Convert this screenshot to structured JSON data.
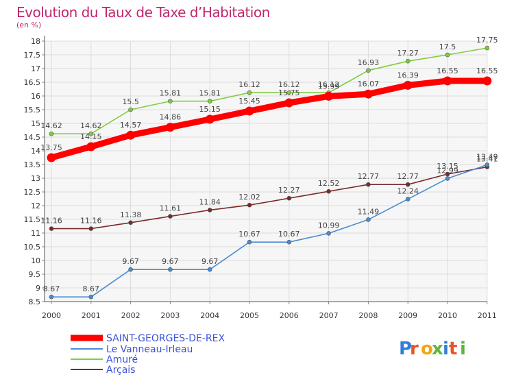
{
  "title": "Evolution du Taux de Taxe d’Habitation",
  "unit": "(en %)",
  "logo": "Proxiti",
  "chart_data": {
    "type": "line",
    "x": [
      "2000",
      "2001",
      "2002",
      "2003",
      "2004",
      "2005",
      "2006",
      "2007",
      "2008",
      "2009",
      "2010",
      "2011"
    ],
    "ylim": [
      8.5,
      18
    ],
    "yticks": [
      8.5,
      9,
      9.5,
      10,
      10.5,
      11,
      11.5,
      12,
      12.5,
      13,
      13.5,
      14,
      14.5,
      15,
      15.5,
      16,
      16.5,
      17,
      17.5,
      18
    ],
    "ytick_labels": [
      "8.5",
      "9",
      "9.5",
      "10",
      "10.5",
      "11",
      "11.5",
      "12",
      "12.5",
      "13",
      "13.5",
      "14",
      "14.5",
      "15",
      "15.5",
      "16",
      "16.5",
      "17",
      "17.5",
      "18"
    ],
    "grid": true,
    "legend_position": "bottom-left",
    "series": [
      {
        "name": "SAINT-GEORGES-DE-REX",
        "color": "#ff0000",
        "values": [
          13.75,
          14.15,
          14.57,
          14.86,
          15.15,
          15.45,
          15.75,
          15.99,
          16.07,
          16.39,
          16.55,
          16.55
        ],
        "labels": [
          "13.75",
          "14.15",
          "14.57",
          "14.86",
          "15.15",
          "15.45",
          "15.75",
          "15.99",
          "16.07",
          "16.39",
          "16.55",
          "16.55"
        ]
      },
      {
        "name": "Le Vanneau-Irleau",
        "color": "#4a8bd2",
        "values": [
          8.67,
          8.67,
          9.67,
          9.67,
          9.67,
          10.67,
          10.67,
          10.99,
          11.49,
          12.24,
          12.99,
          13.49
        ],
        "labels": [
          "8.67",
          "8.67",
          "9.67",
          "9.67",
          "9.67",
          "10.67",
          "10.67",
          "10.99",
          "11.49",
          "12.24",
          "12.99",
          "13.49"
        ]
      },
      {
        "name": "Amuré",
        "color": "#80cc40",
        "values": [
          14.62,
          14.62,
          15.5,
          15.81,
          15.81,
          16.12,
          16.12,
          16.12,
          16.93,
          17.27,
          17.5,
          17.75
        ],
        "labels": [
          "14.62",
          "14.62",
          "15.5",
          "15.81",
          "15.81",
          "16.12",
          "16.12",
          "16.12",
          "16.93",
          "17.27",
          "17.5",
          "17.75"
        ]
      },
      {
        "name": "Arçais",
        "color": "#7a2a2a",
        "values": [
          11.16,
          11.16,
          11.38,
          11.61,
          11.84,
          12.02,
          12.27,
          12.52,
          12.77,
          12.77,
          13.15,
          13.41
        ],
        "labels": [
          "11.16",
          "11.16",
          "11.38",
          "11.61",
          "11.84",
          "12.02",
          "12.27",
          "12.52",
          "12.77",
          "12.77",
          "13.15",
          "13.41"
        ]
      }
    ]
  }
}
